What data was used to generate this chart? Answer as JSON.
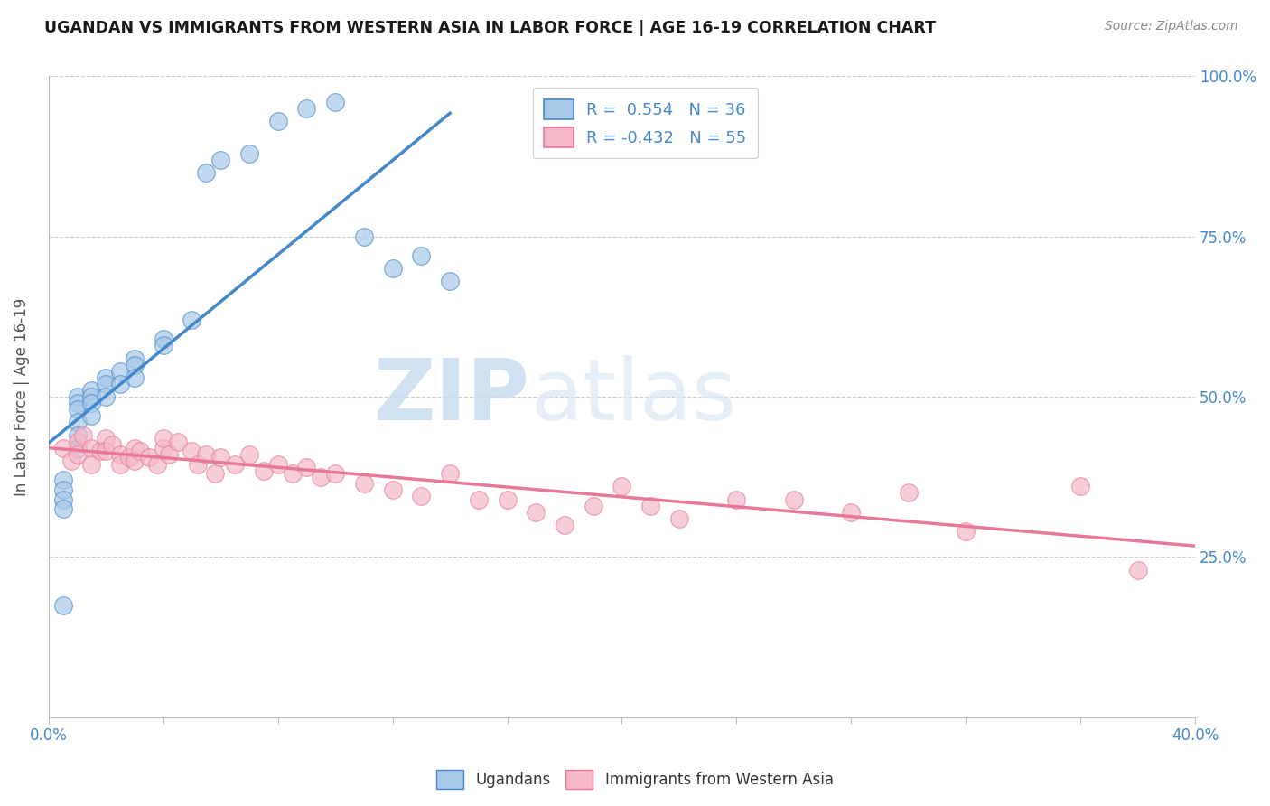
{
  "title": "UGANDAN VS IMMIGRANTS FROM WESTERN ASIA IN LABOR FORCE | AGE 16-19 CORRELATION CHART",
  "source": "Source: ZipAtlas.com",
  "ylabel": "In Labor Force | Age 16-19",
  "xlim": [
    0.0,
    0.4
  ],
  "ylim": [
    0.0,
    1.0
  ],
  "xticks": [
    0.0,
    0.04,
    0.08,
    0.12,
    0.16,
    0.2,
    0.24,
    0.28,
    0.32,
    0.36,
    0.4
  ],
  "yticks": [
    0.0,
    0.25,
    0.5,
    0.75,
    1.0
  ],
  "xticklabels": [
    "0.0%",
    "",
    "",
    "",
    "",
    "",
    "",
    "",
    "",
    "",
    "40.0%"
  ],
  "yticklabels_right": [
    "",
    "25.0%",
    "50.0%",
    "75.0%",
    "100.0%"
  ],
  "ugandan_color": "#a8c8e8",
  "immigrant_color": "#f4b8c8",
  "ugandan_line_color": "#4488cc",
  "immigrant_line_color": "#e87898",
  "R_ugandan": 0.554,
  "N_ugandan": 36,
  "R_immigrant": -0.432,
  "N_immigrant": 55,
  "ugandan_x": [
    0.005,
    0.005,
    0.005,
    0.005,
    0.005,
    0.01,
    0.01,
    0.01,
    0.01,
    0.01,
    0.01,
    0.015,
    0.015,
    0.015,
    0.015,
    0.02,
    0.02,
    0.02,
    0.025,
    0.025,
    0.03,
    0.03,
    0.03,
    0.04,
    0.04,
    0.05,
    0.055,
    0.06,
    0.07,
    0.08,
    0.09,
    0.1,
    0.11,
    0.12,
    0.13,
    0.14
  ],
  "ugandan_y": [
    0.37,
    0.355,
    0.34,
    0.325,
    0.175,
    0.5,
    0.49,
    0.48,
    0.46,
    0.44,
    0.42,
    0.51,
    0.5,
    0.49,
    0.47,
    0.53,
    0.52,
    0.5,
    0.54,
    0.52,
    0.56,
    0.55,
    0.53,
    0.59,
    0.58,
    0.62,
    0.85,
    0.87,
    0.88,
    0.93,
    0.95,
    0.96,
    0.75,
    0.7,
    0.72,
    0.68
  ],
  "immigrant_x": [
    0.005,
    0.008,
    0.01,
    0.01,
    0.012,
    0.015,
    0.015,
    0.018,
    0.02,
    0.02,
    0.022,
    0.025,
    0.025,
    0.028,
    0.03,
    0.03,
    0.032,
    0.035,
    0.038,
    0.04,
    0.04,
    0.042,
    0.045,
    0.05,
    0.052,
    0.055,
    0.058,
    0.06,
    0.065,
    0.07,
    0.075,
    0.08,
    0.085,
    0.09,
    0.095,
    0.1,
    0.11,
    0.12,
    0.13,
    0.14,
    0.15,
    0.16,
    0.17,
    0.18,
    0.19,
    0.2,
    0.21,
    0.22,
    0.24,
    0.26,
    0.28,
    0.3,
    0.32,
    0.36,
    0.38
  ],
  "immigrant_y": [
    0.42,
    0.4,
    0.43,
    0.41,
    0.44,
    0.42,
    0.395,
    0.415,
    0.435,
    0.415,
    0.425,
    0.41,
    0.395,
    0.405,
    0.42,
    0.4,
    0.415,
    0.405,
    0.395,
    0.42,
    0.435,
    0.41,
    0.43,
    0.415,
    0.395,
    0.41,
    0.38,
    0.405,
    0.395,
    0.41,
    0.385,
    0.395,
    0.38,
    0.39,
    0.375,
    0.38,
    0.365,
    0.355,
    0.345,
    0.38,
    0.34,
    0.34,
    0.32,
    0.3,
    0.33,
    0.36,
    0.33,
    0.31,
    0.34,
    0.34,
    0.32,
    0.35,
    0.29,
    0.36,
    0.23
  ]
}
